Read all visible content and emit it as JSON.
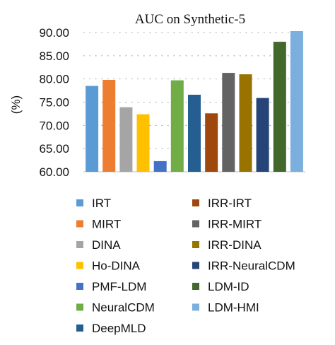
{
  "chart_data": {
    "type": "bar",
    "title": "AUC on Synthetic-5",
    "ylabel": "(%)",
    "xlabel": "",
    "ylim": [
      60,
      90
    ],
    "yticks": [
      "60.00",
      "65.00",
      "70.00",
      "75.00",
      "80.00",
      "85.00",
      "90.00"
    ],
    "grid": "horizontal-dotted",
    "legend_position": "bottom",
    "series": [
      {
        "name": "IRT",
        "value": 78.5,
        "color": "#5b9bd5"
      },
      {
        "name": "MIRT",
        "value": 79.8,
        "color": "#ed7d31"
      },
      {
        "name": "DINA",
        "value": 73.9,
        "color": "#a5a5a5"
      },
      {
        "name": "Ho-DINA",
        "value": 72.4,
        "color": "#ffc000"
      },
      {
        "name": "PMF-LDM",
        "value": 62.3,
        "color": "#4472c4"
      },
      {
        "name": "NeuralCDM",
        "value": 79.7,
        "color": "#70ad47"
      },
      {
        "name": "DeepMLD",
        "value": 76.6,
        "color": "#255e91"
      },
      {
        "name": "IRR-IRT",
        "value": 72.6,
        "color": "#9e480e"
      },
      {
        "name": "IRR-MIRT",
        "value": 81.3,
        "color": "#636363"
      },
      {
        "name": "IRR-DINA",
        "value": 81.0,
        "color": "#997300"
      },
      {
        "name": "IRR-NeuralCDM",
        "value": 75.9,
        "color": "#264478"
      },
      {
        "name": "LDM-ID",
        "value": 88.0,
        "color": "#43682b"
      },
      {
        "name": "LDM-HMI",
        "value": 90.3,
        "color": "#7cafdd"
      }
    ]
  }
}
